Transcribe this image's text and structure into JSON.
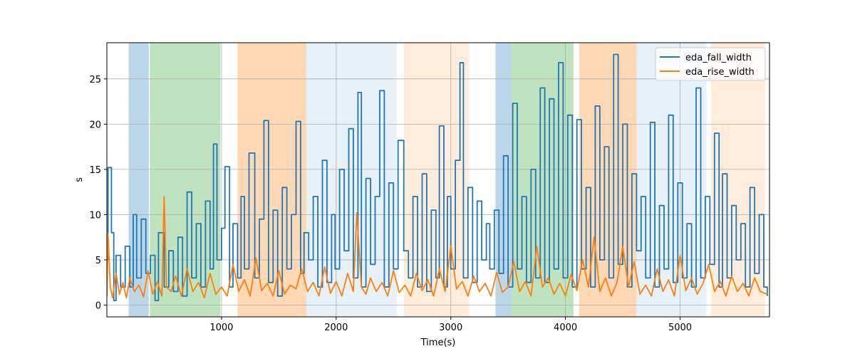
{
  "chart_data": {
    "type": "line",
    "title": "",
    "xlabel": "Time(s)",
    "ylabel": "s",
    "xlim": [
      0,
      5780
    ],
    "ylim": [
      -1.3,
      29.0
    ],
    "xticks": [
      1000,
      2000,
      3000,
      4000,
      5000
    ],
    "yticks": [
      0,
      5,
      10,
      15,
      20,
      25
    ],
    "grid": true,
    "legend": {
      "placement": "top-right"
    },
    "bands": [
      {
        "x0": 190,
        "x1": 365,
        "color": "#1f77b4",
        "opacity": 0.3
      },
      {
        "x0": 375,
        "x1": 990,
        "color": "#2ca02c",
        "opacity": 0.3
      },
      {
        "x0": 1140,
        "x1": 1740,
        "color": "#ff7f0e",
        "opacity": 0.3
      },
      {
        "x0": 1740,
        "x1": 2530,
        "color": "#1f77b4",
        "opacity": 0.1
      },
      {
        "x0": 2590,
        "x1": 3160,
        "color": "#ff7f0e",
        "opacity": 0.15
      },
      {
        "x0": 3390,
        "x1": 3530,
        "color": "#1f77b4",
        "opacity": 0.3
      },
      {
        "x0": 3530,
        "x1": 4070,
        "color": "#2ca02c",
        "opacity": 0.3
      },
      {
        "x0": 4120,
        "x1": 4620,
        "color": "#ff7f0e",
        "opacity": 0.3
      },
      {
        "x0": 4620,
        "x1": 5230,
        "color": "#1f77b4",
        "opacity": 0.1
      },
      {
        "x0": 5270,
        "x1": 5740,
        "color": "#ff7f0e",
        "opacity": 0.15
      }
    ],
    "series": [
      {
        "name": "eda_fall_width",
        "color": "#1f77b4",
        "step": true,
        "x": [
          0,
          10,
          40,
          60,
          80,
          120,
          160,
          200,
          230,
          260,
          300,
          340,
          380,
          420,
          450,
          500,
          540,
          580,
          620,
          660,
          700,
          740,
          780,
          820,
          860,
          900,
          930,
          960,
          1000,
          1030,
          1070,
          1100,
          1140,
          1170,
          1200,
          1240,
          1290,
          1330,
          1370,
          1410,
          1450,
          1490,
          1530,
          1570,
          1610,
          1650,
          1690,
          1720,
          1760,
          1800,
          1840,
          1880,
          1920,
          1960,
          1990,
          2030,
          2070,
          2110,
          2150,
          2190,
          2220,
          2260,
          2300,
          2340,
          2380,
          2420,
          2460,
          2500,
          2540,
          2590,
          2630,
          2670,
          2710,
          2750,
          2790,
          2830,
          2870,
          2900,
          2940,
          2970,
          3000,
          3040,
          3080,
          3110,
          3150,
          3190,
          3230,
          3270,
          3310,
          3340,
          3380,
          3420,
          3460,
          3500,
          3540,
          3580,
          3620,
          3660,
          3700,
          3740,
          3780,
          3820,
          3860,
          3900,
          3940,
          3980,
          4020,
          4060,
          4100,
          4140,
          4180,
          4220,
          4260,
          4300,
          4340,
          4380,
          4420,
          4460,
          4500,
          4540,
          4580,
          4620,
          4660,
          4700,
          4740,
          4780,
          4820,
          4860,
          4900,
          4940,
          4980,
          5020,
          5060,
          5100,
          5140,
          5180,
          5220,
          5260,
          5300,
          5340,
          5370,
          5410,
          5450,
          5490,
          5530,
          5570,
          5610,
          5650,
          5690,
          5730,
          5760
        ],
        "y": [
          5.0,
          15.2,
          8.0,
          0.5,
          5.5,
          2.0,
          6.5,
          2.0,
          10.0,
          3.0,
          9.5,
          3.5,
          5.5,
          0.5,
          8.0,
          2.0,
          6.0,
          1.5,
          7.5,
          1.0,
          12.5,
          3.0,
          9.0,
          2.0,
          11.5,
          4.0,
          17.8,
          5.0,
          8.5,
          15.3,
          2.0,
          9.0,
          3.0,
          12.0,
          4.0,
          16.8,
          3.0,
          9.5,
          20.4,
          2.5,
          10.5,
          1.0,
          13.0,
          4.0,
          10.0,
          20.3,
          3.5,
          8.0,
          5.0,
          12.0,
          2.0,
          16.0,
          2.5,
          10.0,
          4.0,
          15.0,
          6.0,
          19.5,
          3.0,
          23.5,
          2.0,
          14.0,
          4.5,
          12.0,
          23.7,
          2.0,
          13.5,
          4.0,
          18.2,
          6.0,
          3.0,
          12.0,
          2.0,
          14.5,
          1.5,
          10.5,
          3.0,
          19.8,
          2.0,
          12.0,
          4.0,
          16.0,
          26.8,
          3.0,
          13.0,
          2.5,
          11.5,
          5.0,
          9.0,
          4.0,
          10.5,
          3.5,
          16.5,
          2.0,
          22.3,
          4.0,
          12.0,
          2.5,
          15.0,
          3.0,
          24.0,
          2.5,
          22.8,
          4.0,
          26.8,
          3.0,
          21.0,
          2.0,
          20.5,
          4.0,
          13.0,
          2.0,
          22.0,
          5.0,
          17.5,
          3.0,
          27.7,
          4.5,
          20.0,
          2.0,
          14.5,
          6.0,
          12.0,
          3.0,
          20.2,
          2.0,
          11.0,
          4.0,
          21.0,
          2.5,
          13.5,
          3.0,
          9.0,
          2.0,
          24.0,
          3.0,
          12.0,
          4.5,
          19.0,
          2.0,
          14.5,
          3.0,
          11.0,
          5.0,
          9.0,
          2.0,
          13.0,
          3.5,
          10.0,
          2.0,
          1.0
        ]
      },
      {
        "name": "eda_rise_width",
        "color": "#ff7f0e",
        "step": false,
        "x": [
          0,
          10,
          30,
          50,
          80,
          110,
          140,
          170,
          200,
          240,
          280,
          320,
          360,
          400,
          440,
          480,
          500,
          520,
          560,
          600,
          650,
          700,
          750,
          800,
          850,
          900,
          950,
          1000,
          1050,
          1100,
          1150,
          1200,
          1250,
          1300,
          1350,
          1400,
          1450,
          1500,
          1550,
          1600,
          1650,
          1700,
          1750,
          1800,
          1850,
          1900,
          1950,
          2000,
          2050,
          2100,
          2150,
          2180,
          2220,
          2260,
          2300,
          2350,
          2400,
          2450,
          2500,
          2550,
          2600,
          2650,
          2700,
          2750,
          2800,
          2850,
          2900,
          2950,
          3000,
          3050,
          3100,
          3150,
          3200,
          3250,
          3300,
          3350,
          3400,
          3450,
          3500,
          3550,
          3600,
          3650,
          3700,
          3750,
          3800,
          3850,
          3900,
          3950,
          4000,
          4050,
          4100,
          4150,
          4200,
          4250,
          4300,
          4350,
          4400,
          4450,
          4500,
          4550,
          4600,
          4650,
          4700,
          4750,
          4800,
          4850,
          4900,
          4950,
          5000,
          5050,
          5100,
          5150,
          5200,
          5250,
          5300,
          5350,
          5400,
          5450,
          5500,
          5550,
          5600,
          5650,
          5700,
          5760
        ],
        "y": [
          1.0,
          7.9,
          2.0,
          0.8,
          3.5,
          1.2,
          2.5,
          0.8,
          3.0,
          1.5,
          2.2,
          0.9,
          3.8,
          1.2,
          2.6,
          1.0,
          12.0,
          2.0,
          1.5,
          3.2,
          1.0,
          4.0,
          1.5,
          2.5,
          0.8,
          3.5,
          1.2,
          2.0,
          1.0,
          4.5,
          1.5,
          2.8,
          1.0,
          5.2,
          1.6,
          2.4,
          1.0,
          3.8,
          1.2,
          2.2,
          1.8,
          4.0,
          1.5,
          2.5,
          1.0,
          4.2,
          1.3,
          2.6,
          1.0,
          3.5,
          1.5,
          10.2,
          2.0,
          1.2,
          3.0,
          1.5,
          2.5,
          1.0,
          3.8,
          1.4,
          2.2,
          1.0,
          3.5,
          1.6,
          2.8,
          1.0,
          4.0,
          1.5,
          6.5,
          1.8,
          2.6,
          1.0,
          3.2,
          1.5,
          2.4,
          1.0,
          3.6,
          1.4,
          2.0,
          4.8,
          1.5,
          2.6,
          1.0,
          6.5,
          2.0,
          3.0,
          1.2,
          2.4,
          1.0,
          3.4,
          1.6,
          5.0,
          2.0,
          7.5,
          1.5,
          3.0,
          1.0,
          2.5,
          6.5,
          2.0,
          4.8,
          1.2,
          2.2,
          1.0,
          4.0,
          1.5,
          2.8,
          1.0,
          5.5,
          1.6,
          3.0,
          1.2,
          2.4,
          4.5,
          1.5,
          2.6,
          1.0,
          3.2,
          1.5,
          2.4,
          1.0,
          3.0,
          1.5,
          1.2
        ]
      }
    ]
  }
}
